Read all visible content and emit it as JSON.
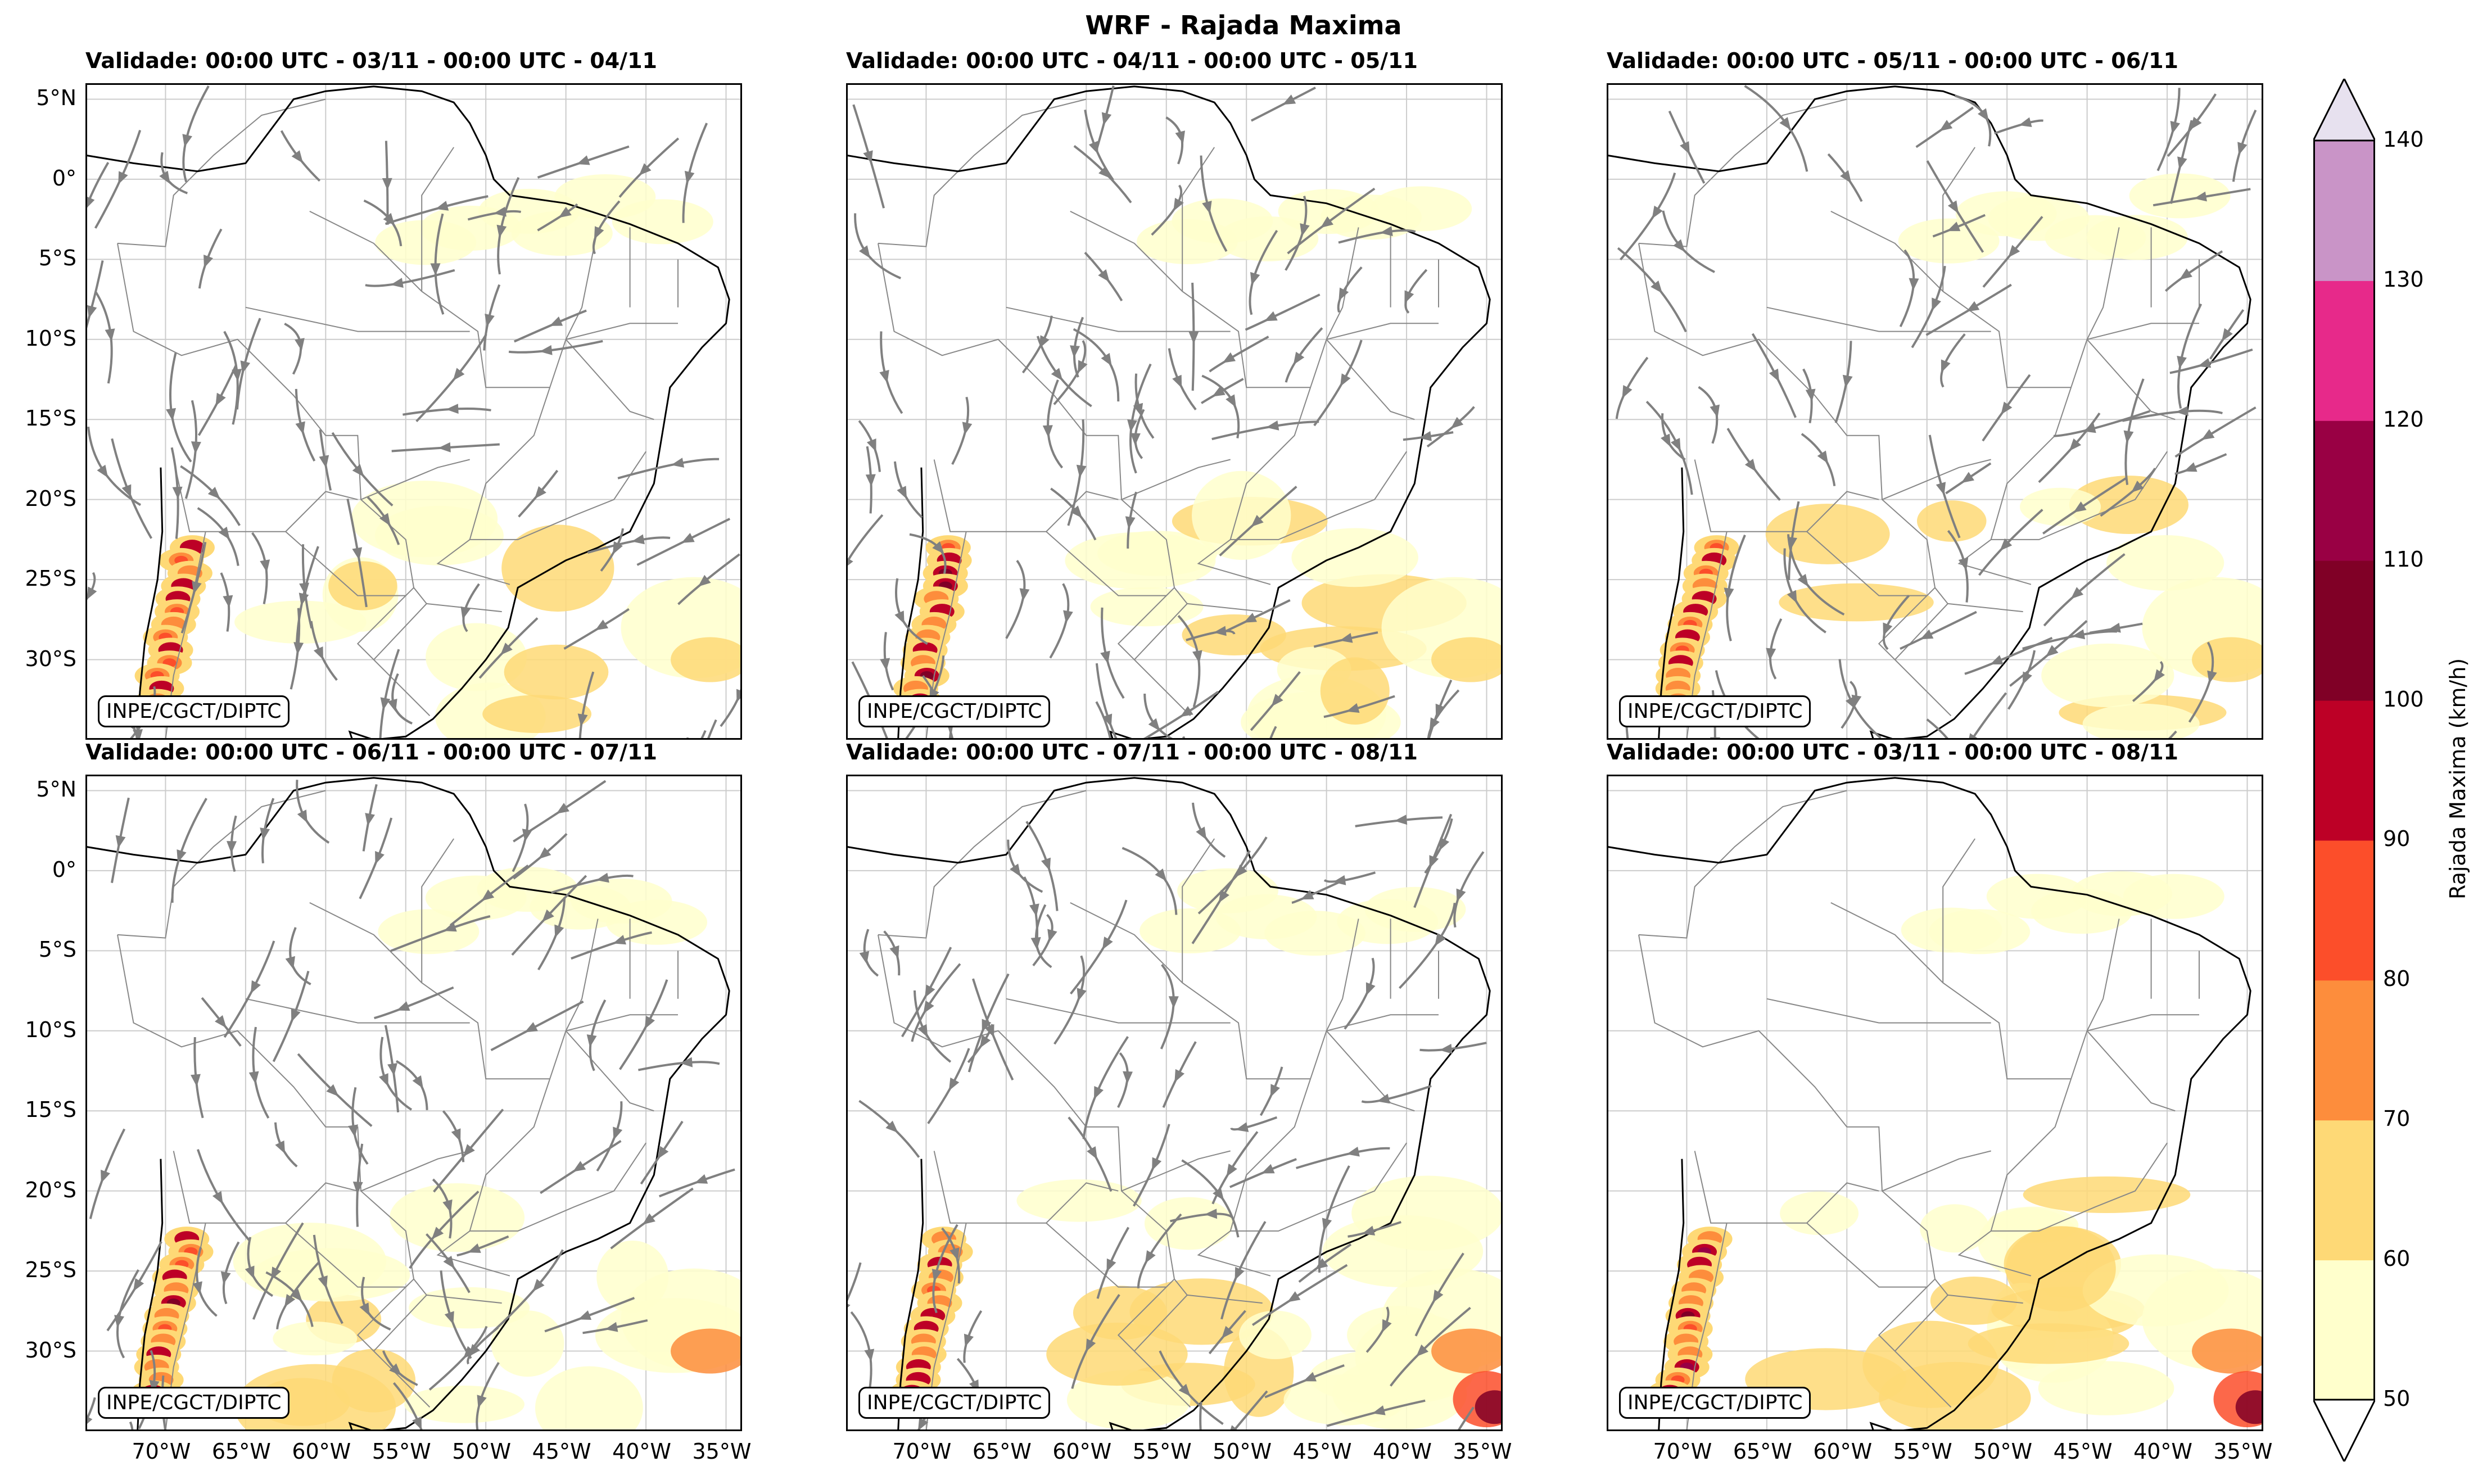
{
  "title": "WRF - Rajada Maxima",
  "credit": "INPE/CGCT/DIPTC",
  "panels": [
    {
      "title": "Validade: 00:00 UTC - 03/11 - 00:00 UTC - 04/11",
      "streamlines": true,
      "intensity": 1.0
    },
    {
      "title": "Validade: 00:00 UTC - 04/11 - 00:00 UTC - 05/11",
      "streamlines": true,
      "intensity": 1.3
    },
    {
      "title": "Validade: 00:00 UTC - 05/11 - 00:00 UTC - 06/11",
      "streamlines": true,
      "intensity": 0.9
    },
    {
      "title": "Validade: 00:00 UTC - 06/11 - 00:00 UTC - 07/11",
      "streamlines": true,
      "intensity": 1.4
    },
    {
      "title": "Validade: 00:00 UTC - 07/11 - 00:00 UTC - 08/11",
      "streamlines": true,
      "intensity": 1.6
    },
    {
      "title": "Validade: 00:00 UTC - 03/11 - 00:00 UTC - 08/11",
      "streamlines": false,
      "intensity": 1.8
    }
  ],
  "lat_ticks": [
    "5°N",
    "0°",
    "5°S",
    "10°S",
    "15°S",
    "20°S",
    "25°S",
    "30°S"
  ],
  "lon_ticks": [
    "70°W",
    "65°W",
    "60°W",
    "55°W",
    "50°W",
    "45°W",
    "40°W",
    "35°W"
  ],
  "colorbar": {
    "label": "Rajada Maxima (km/h)",
    "ticks": [
      "50",
      "60",
      "70",
      "80",
      "90",
      "100",
      "110",
      "120",
      "130",
      "140"
    ],
    "colors": [
      "#ffffcc",
      "#fed976",
      "#fd8d3c",
      "#fc4e2a",
      "#bd0026",
      "#800026",
      "#990044",
      "#e7298a",
      "#c994c7",
      "#e7e1ef"
    ]
  },
  "colors": {
    "streamline": "#808080",
    "coast": "#000000",
    "border": "#888888",
    "grid": "#cccccc"
  }
}
